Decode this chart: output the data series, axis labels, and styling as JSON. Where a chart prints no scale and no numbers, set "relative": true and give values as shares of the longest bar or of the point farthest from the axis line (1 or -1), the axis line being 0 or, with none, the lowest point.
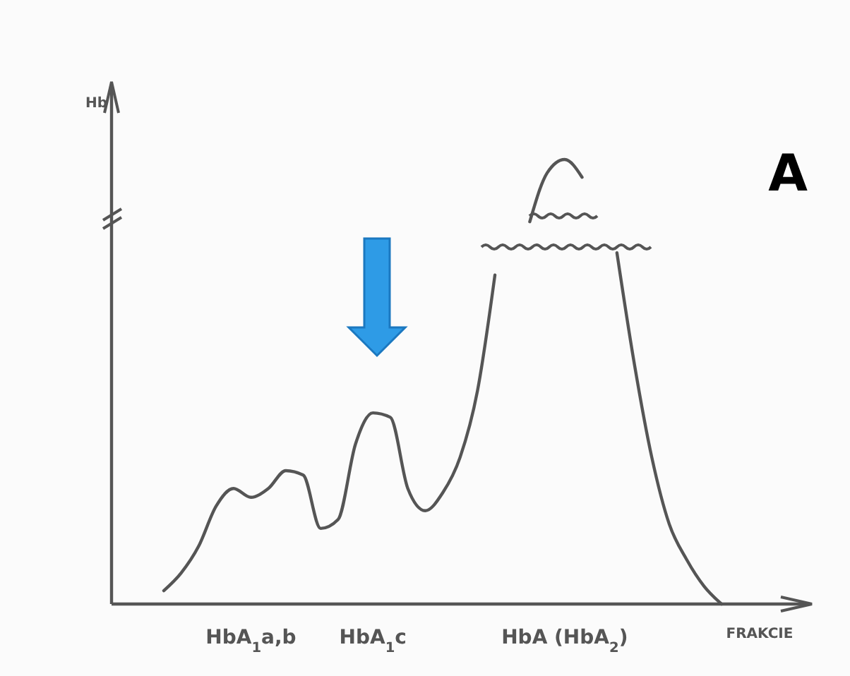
{
  "chart_data": {
    "type": "line",
    "relative": true,
    "xlabel": "FRAKCIE",
    "ylabel": "Hb",
    "annotations": [
      "A"
    ],
    "categories": [
      null,
      null,
      null,
      null,
      null,
      "HbA$_{1}$a,b",
      null,
      null,
      null,
      null,
      null,
      null,
      "HbA$_{1}$c",
      null,
      null,
      null,
      null,
      null,
      null,
      null,
      null,
      null,
      null,
      "HbA (HbA$_{2}$)",
      null,
      null,
      null,
      null,
      null,
      null,
      null,
      null,
      null
    ],
    "grid": false,
    "marker": "none",
    "line_style": "solid",
    "series": [
      {
        "color": "#555555",
        "values": [
          0.03,
          0.07,
          0.13,
          0.22,
          0.26,
          0.24,
          0.26,
          0.3,
          0.29,
          0.17,
          0.19,
          0.36,
          0.43,
          0.42,
          0.26,
          0.21,
          0.25,
          0.33,
          0.48,
          0.74,
          null,
          0.86,
          0.97,
          1.0,
          0.96,
          null,
          0.79,
          0.54,
          0.33,
          0.18,
          0.1,
          0.04,
          0
        ]
      }
    ]
  }
}
